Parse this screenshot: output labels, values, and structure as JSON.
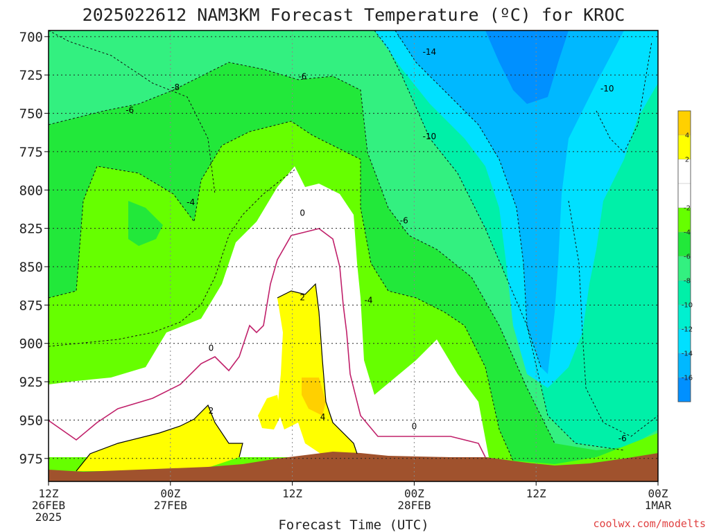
{
  "chart_data": {
    "type": "heatmap",
    "title": "2025022612 NAM3KM Forecast Temperature (ºC) for KROC",
    "xlabel": "Forecast Time (UTC)",
    "ylabel": "",
    "credit": "coolwx.com/modelts",
    "y_axis": {
      "unit": "hPa",
      "inverted": true,
      "range": [
        696,
        990
      ],
      "ticks": [
        700,
        725,
        750,
        775,
        800,
        825,
        850,
        875,
        900,
        925,
        950,
        975
      ]
    },
    "x_axis": {
      "range": [
        0,
        60
      ],
      "unit": "forecast hours from 2025-02-26 12Z",
      "ticks": [
        {
          "hour": 0,
          "line1": "12Z",
          "line2": "26FEB",
          "line3": "2025"
        },
        {
          "hour": 12,
          "line1": "00Z",
          "line2": "27FEB",
          "line3": ""
        },
        {
          "hour": 24,
          "line1": "12Z",
          "line2": "",
          "line3": ""
        },
        {
          "hour": 36,
          "line1": "00Z",
          "line2": "28FEB",
          "line3": ""
        },
        {
          "hour": 48,
          "line1": "12Z",
          "line2": "",
          "line3": ""
        },
        {
          "hour": 60,
          "line1": "00Z",
          "line2": "1MAR",
          "line3": ""
        }
      ]
    },
    "grid": true,
    "legend_position": "right",
    "colorbar": {
      "labels": [
        "4",
        "2",
        "-2",
        "-4",
        "-6",
        "-8",
        "-10",
        "-12",
        "-14",
        "-16"
      ],
      "bins": [
        {
          "min": 4,
          "max": 6,
          "color": "#ffd000"
        },
        {
          "min": 2,
          "max": 4,
          "color": "#ffff00"
        },
        {
          "min": 0,
          "max": 2,
          "color": "#ffffff"
        },
        {
          "min": -2,
          "max": 0,
          "color": "#ffffff"
        },
        {
          "min": -4,
          "max": -2,
          "color": "#66ff00"
        },
        {
          "min": -6,
          "max": -4,
          "color": "#22e83a"
        },
        {
          "min": -8,
          "max": -6,
          "color": "#33f080"
        },
        {
          "min": -10,
          "max": -8,
          "color": "#00f0a8"
        },
        {
          "min": -12,
          "max": -10,
          "color": "#00f0d0"
        },
        {
          "min": -14,
          "max": -12,
          "color": "#00e0ff"
        },
        {
          "min": -16,
          "max": -14,
          "color": "#00b8ff"
        },
        {
          "min": -18,
          "max": -16,
          "color": "#0090ff"
        }
      ]
    },
    "contour_labels": [
      {
        "text": "-14",
        "hour": 37.5,
        "p": 710
      },
      {
        "text": "-6",
        "hour": 25,
        "p": 726
      },
      {
        "text": "-8",
        "hour": 12.5,
        "p": 733
      },
      {
        "text": "-10",
        "hour": 55,
        "p": 734
      },
      {
        "text": "-6",
        "hour": 8,
        "p": 748
      },
      {
        "text": "-10",
        "hour": 37.5,
        "p": 765
      },
      {
        "text": "-4",
        "hour": 14,
        "p": 808
      },
      {
        "text": "0",
        "hour": 25,
        "p": 815
      },
      {
        "text": "-6",
        "hour": 35,
        "p": 820
      },
      {
        "text": "2",
        "hour": 25,
        "p": 870
      },
      {
        "text": "-4",
        "hour": 31.5,
        "p": 872
      },
      {
        "text": "0",
        "hour": 16,
        "p": 903
      },
      {
        "text": "2",
        "hour": 16,
        "p": 944
      },
      {
        "text": "4",
        "hour": 27,
        "p": 948
      },
      {
        "text": "0",
        "hour": 36,
        "p": 954
      },
      {
        "text": "-6",
        "hour": 56.5,
        "p": 962
      }
    ]
  }
}
